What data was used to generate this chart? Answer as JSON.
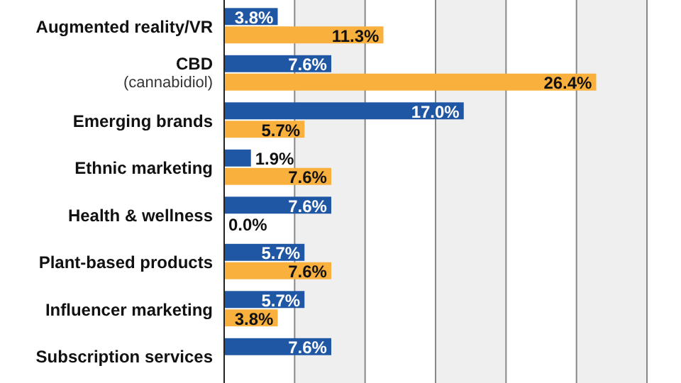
{
  "chart_data": {
    "type": "bar",
    "orientation": "horizontal",
    "categories": [
      "Augmented reality/VR",
      "CBD\n(cannabidiol)",
      "Emerging brands",
      "Ethnic marketing",
      "Health & wellness",
      "Plant-based products",
      "Influencer marketing",
      "Subscription services"
    ],
    "series": [
      {
        "color": "#1f57a4",
        "values": [
          3.8,
          7.6,
          17.0,
          1.9,
          7.6,
          5.7,
          5.7,
          7.6
        ],
        "value_labels": [
          "3.8%",
          "7.6%",
          "17.0%",
          "1.9%",
          "7.6%",
          "5.7%",
          "5.7%",
          "7.6%"
        ]
      },
      {
        "color": "#f9b03d",
        "values": [
          11.3,
          26.4,
          5.7,
          7.6,
          0.0,
          7.6,
          3.8,
          null
        ],
        "value_labels": [
          "11.3%",
          "26.4%",
          "5.7%",
          "7.6%",
          "0.0%",
          "7.6%",
          "3.8%",
          null
        ]
      }
    ],
    "xlim": [
      0,
      30
    ],
    "xticks": [
      {
        "value": 0,
        "label": null
      },
      {
        "value": 5,
        "label": null
      },
      {
        "value": 10,
        "label": null
      },
      {
        "value": 15,
        "label": null
      },
      {
        "value": 20,
        "label": null
      },
      {
        "value": 25,
        "label": null
      },
      {
        "value": 30,
        "label": null
      }
    ],
    "grid": "x",
    "tick_labels": "y"
  }
}
